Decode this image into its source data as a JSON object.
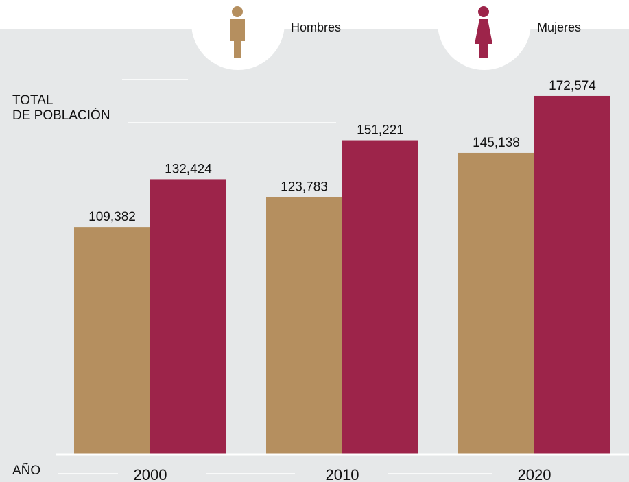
{
  "legend": {
    "men_label": "Hombres",
    "women_label": "Mujeres",
    "men_icon": "man-icon",
    "women_icon": "woman-icon"
  },
  "axis": {
    "y_title_line1": "TOTAL",
    "y_title_line2": "DE POBLACIÓN",
    "x_title": "AÑO"
  },
  "colors": {
    "men": "#b58f5f",
    "women": "#9d244a",
    "background": "#e6e8e9"
  },
  "chart_data": {
    "type": "bar",
    "categories": [
      "2000",
      "2010",
      "2020"
    ],
    "series": [
      {
        "name": "Hombres",
        "values": [
          109382,
          123783,
          145138
        ]
      },
      {
        "name": "Mujeres",
        "values": [
          132424,
          151221,
          172574
        ]
      }
    ],
    "value_labels": {
      "Hombres": [
        "109,382",
        "123,783",
        "145,138"
      ],
      "Mujeres": [
        "132,424",
        "151,221",
        "172,574"
      ]
    },
    "xlabel": "AÑO",
    "ylabel": "TOTAL DE POBLACIÓN",
    "ylim": [
      0,
      183000
    ],
    "grid": false,
    "legend_position": "top"
  }
}
